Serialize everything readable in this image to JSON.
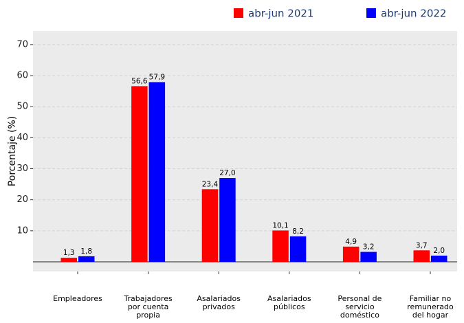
{
  "chart_data": {
    "type": "bar",
    "y_label": "Porcentaje (%)",
    "categories": [
      "Empleadores",
      "Trabajadores\npor cuenta\npropia",
      "Asalariados\nprivados",
      "Asalariados\npúblicos",
      "Personal de\nservicio\ndoméstico",
      "Familiar no\nremunerado\ndel hogar"
    ],
    "series": [
      {
        "name": "abr-jun 2021",
        "color": "#ff0000",
        "values": [
          1.3,
          56.6,
          23.4,
          10.1,
          4.9,
          3.7
        ],
        "value_labels": [
          "1,3",
          "56,6",
          "23,4",
          "10,1",
          "4,9",
          "3,7"
        ]
      },
      {
        "name": "abr-jun 2022",
        "color": "#0000ff",
        "values": [
          1.8,
          57.9,
          27.0,
          8.2,
          3.2,
          2.0
        ],
        "value_labels": [
          "1,8",
          "57,9",
          "27,0",
          "8,2",
          "3,2",
          "2,0"
        ]
      }
    ],
    "ylim": [
      -3.1,
      74.4
    ],
    "yticks": [
      10,
      20,
      30,
      40,
      50,
      60,
      70
    ],
    "grid": true,
    "legend": "top-right"
  }
}
